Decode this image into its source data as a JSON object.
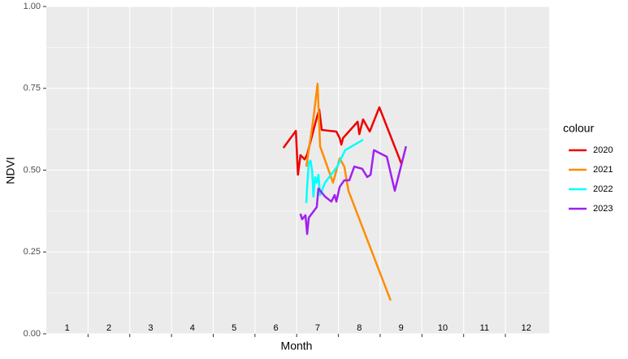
{
  "chart_data": {
    "type": "line",
    "x_label": "Month",
    "y_label": "NDVI",
    "legend_title": "colour",
    "legend": "right",
    "xlim": [
      0.5,
      12.55
    ],
    "ylim": [
      0,
      1
    ],
    "xticks": [
      1,
      2,
      3,
      4,
      5,
      6,
      7,
      8,
      9,
      10,
      11,
      12
    ],
    "yticks": [
      {
        "value": 0,
        "label": "0.00"
      },
      {
        "value": 0.25,
        "label": "0.25"
      },
      {
        "value": 0.5,
        "label": "0.50"
      },
      {
        "value": 0.75,
        "label": "0.75"
      },
      {
        "value": 1,
        "label": "1.00"
      }
    ],
    "grid": true,
    "series": [
      {
        "name": "2020",
        "color": "#ee0000",
        "x": [
          6.18,
          6.48,
          6.53,
          6.59,
          6.69,
          6.75,
          6.98,
          7.04,
          7.1,
          7.45,
          7.53,
          7.57,
          7.61,
          7.96,
          8.0,
          8.09,
          8.25,
          8.48,
          9.01
        ],
        "values": [
          0.568,
          0.62,
          0.486,
          0.546,
          0.533,
          0.548,
          0.66,
          0.685,
          0.623,
          0.618,
          0.598,
          0.578,
          0.598,
          0.648,
          0.61,
          0.655,
          0.618,
          0.692,
          0.519
        ]
      },
      {
        "name": "2021",
        "color": "#ff8c00",
        "x": [
          6.73,
          6.89,
          7.0,
          7.06,
          7.37,
          7.53,
          7.64,
          7.74,
          8.75
        ],
        "values": [
          0.511,
          0.648,
          0.764,
          0.573,
          0.462,
          0.536,
          0.511,
          0.437,
          0.102
        ]
      },
      {
        "name": "2022",
        "color": "#00ffff",
        "x": [
          6.73,
          6.75,
          6.79,
          6.83,
          6.87,
          6.9,
          6.94,
          6.98,
          7.02,
          7.06,
          7.18,
          7.47,
          7.66,
          8.09
        ],
        "values": [
          0.4,
          0.449,
          0.524,
          0.529,
          0.499,
          0.419,
          0.479,
          0.462,
          0.486,
          0.424,
          0.462,
          0.511,
          0.561,
          0.593
        ]
      },
      {
        "name": "2023",
        "color": "#a020f0",
        "x": [
          6.59,
          6.63,
          6.71,
          6.75,
          6.79,
          6.98,
          7.02,
          7.18,
          7.33,
          7.41,
          7.45,
          7.53,
          7.64,
          7.76,
          7.88,
          8.07,
          8.19,
          8.27,
          8.35,
          8.66,
          8.85,
          9.12
        ],
        "values": [
          0.367,
          0.35,
          0.362,
          0.305,
          0.355,
          0.387,
          0.444,
          0.419,
          0.404,
          0.424,
          0.404,
          0.449,
          0.469,
          0.469,
          0.511,
          0.504,
          0.479,
          0.486,
          0.561,
          0.541,
          0.437,
          0.573
        ]
      }
    ]
  }
}
